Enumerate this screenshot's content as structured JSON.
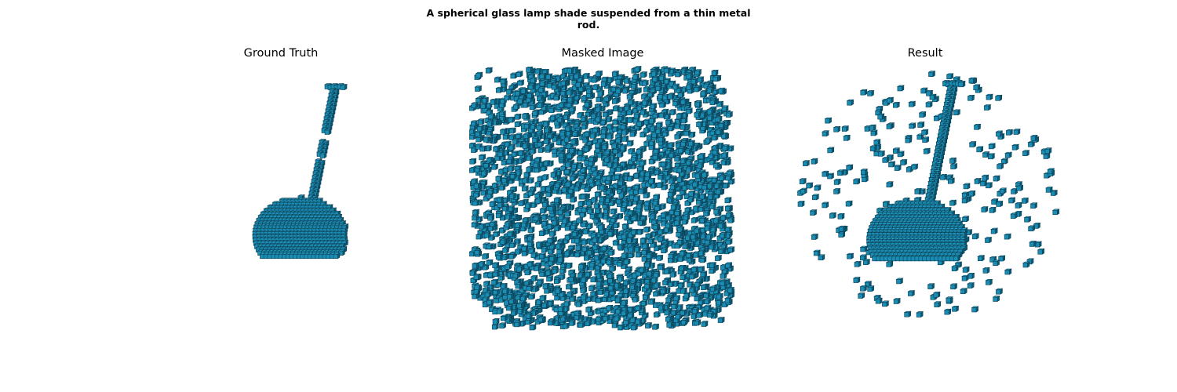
{
  "figure": {
    "title": "A spherical glass lamp shade suspended from a thin metal\nrod.",
    "title_line1": "A spherical glass lamp shade suspended from a thin metal",
    "title_line2": "rod."
  },
  "panels": [
    {
      "id": "ground-truth",
      "title": "Ground Truth"
    },
    {
      "id": "masked-image",
      "title": "Masked Image"
    },
    {
      "id": "result",
      "title": "Result"
    }
  ],
  "colors": {
    "voxel_front": "#1a8db5",
    "voxel_top": "#2fa9d4",
    "voxel_side": "#0e5a75",
    "voxel_edge": "#0b3f52",
    "background": "#ffffff"
  }
}
